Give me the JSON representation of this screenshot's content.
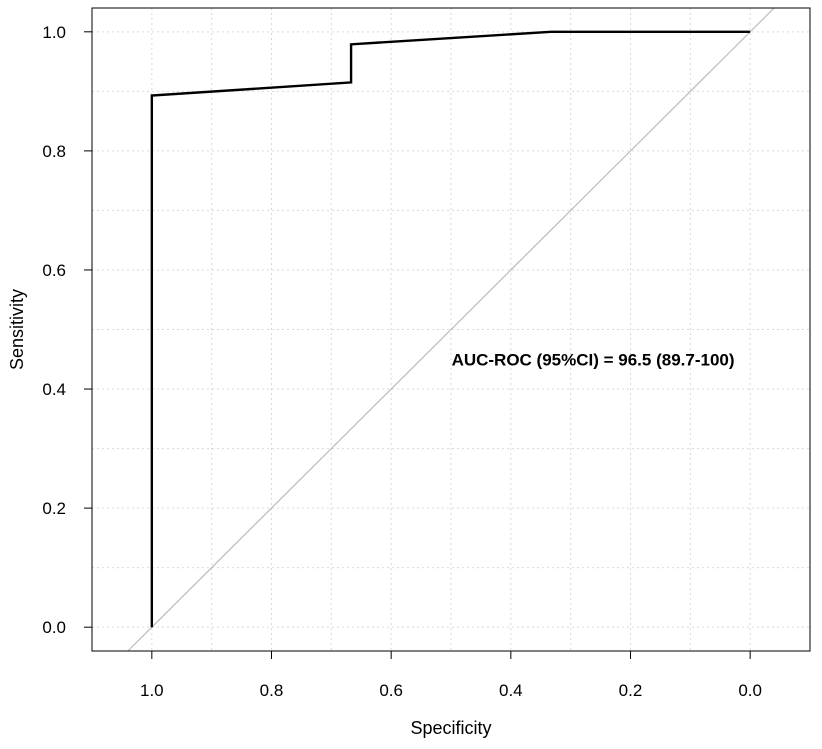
{
  "chart_data": {
    "type": "line",
    "title": "",
    "xlabel": "Specificity",
    "ylabel": "Sensitivity",
    "xlim": [
      1.1,
      -0.1
    ],
    "ylim": [
      -0.04,
      1.04
    ],
    "x_reversed": true,
    "grid": true,
    "x_ticks": [
      1.0,
      0.8,
      0.6,
      0.4,
      0.2,
      0.0
    ],
    "x_tick_labels": [
      "1.0",
      "0.8",
      "0.6",
      "0.4",
      "0.2",
      "0.0"
    ],
    "y_ticks": [
      0.0,
      0.2,
      0.4,
      0.6,
      0.8,
      1.0
    ],
    "y_tick_labels": [
      "0.0",
      "0.2",
      "0.4",
      "0.6",
      "0.8",
      "1.0"
    ],
    "series": [
      {
        "color": "#000000",
        "x": [
          1.0,
          1.0,
          0.667,
          0.667,
          0.333,
          0.0
        ],
        "y": [
          0.0,
          0.893,
          0.915,
          0.979,
          1.0,
          1.0
        ]
      }
    ],
    "reference_line": {
      "color": "#bbbbbb",
      "from": [
        1.0,
        0.0
      ],
      "to": [
        0.0,
        1.0
      ]
    },
    "annotations": [
      {
        "text": "AUC-ROC (95%CI) = 96.5 (89.7-100)",
        "x": 0.53,
        "y": 0.45
      }
    ]
  }
}
